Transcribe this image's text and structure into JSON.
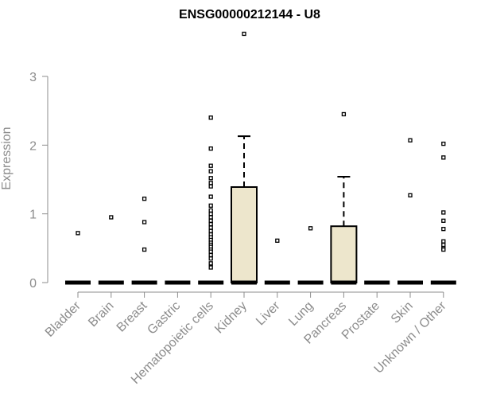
{
  "chart_data": {
    "type": "boxplot",
    "title": "ENSG00000212144 - U8",
    "xlabel": "",
    "ylabel": "Expression",
    "ylim": [
      0,
      3.6
    ],
    "yticks": [
      "0",
      "1",
      "2",
      "3"
    ],
    "box_fill": "#ede6cc",
    "categories": [
      "Bladder",
      "Brain",
      "Breast",
      "Gastric",
      "Hematopoietic cells",
      "Kidney",
      "Liver",
      "Lung",
      "Pancreas",
      "Prostate",
      "Skin",
      "Unknown / Other"
    ],
    "boxes": [
      {
        "category": "Bladder",
        "min": 0,
        "q1": 0,
        "median": 0,
        "q3": 0,
        "max": 0,
        "outliers": [
          0.72
        ]
      },
      {
        "category": "Brain",
        "min": 0,
        "q1": 0,
        "median": 0,
        "q3": 0,
        "max": 0,
        "outliers": [
          0.95
        ]
      },
      {
        "category": "Breast",
        "min": 0,
        "q1": 0,
        "median": 0,
        "q3": 0,
        "max": 0,
        "outliers": [
          1.22,
          0.88,
          0.48
        ]
      },
      {
        "category": "Gastric",
        "min": 0,
        "q1": 0,
        "median": 0,
        "q3": 0,
        "max": 0,
        "outliers": []
      },
      {
        "category": "Hematopoietic cells",
        "min": 0,
        "q1": 0,
        "median": 0,
        "q3": 0,
        "max": 0,
        "outliers": [
          2.4,
          1.95,
          1.7,
          1.62,
          1.52,
          1.45,
          1.4,
          1.25,
          1.12,
          1.05,
          1.0,
          0.95,
          0.9,
          0.85,
          0.8,
          0.75,
          0.7,
          0.66,
          0.62,
          0.58,
          0.55,
          0.52,
          0.48,
          0.45,
          0.4,
          0.35,
          0.28,
          0.22
        ]
      },
      {
        "category": "Kidney",
        "min": 0,
        "q1": 0,
        "median": 0,
        "q3": 1.39,
        "max": 2.13,
        "outliers": [
          3.62
        ]
      },
      {
        "category": "Liver",
        "min": 0,
        "q1": 0,
        "median": 0,
        "q3": 0,
        "max": 0,
        "outliers": [
          0.61
        ]
      },
      {
        "category": "Lung",
        "min": 0,
        "q1": 0,
        "median": 0,
        "q3": 0,
        "max": 0,
        "outliers": [
          0.79
        ]
      },
      {
        "category": "Pancreas",
        "min": 0,
        "q1": 0,
        "median": 0,
        "q3": 0.82,
        "max": 1.54,
        "outliers": [
          2.45
        ]
      },
      {
        "category": "Prostate",
        "min": 0,
        "q1": 0,
        "median": 0,
        "q3": 0,
        "max": 0,
        "outliers": []
      },
      {
        "category": "Skin",
        "min": 0,
        "q1": 0,
        "median": 0,
        "q3": 0,
        "max": 0,
        "outliers": [
          2.07,
          1.27
        ]
      },
      {
        "category": "Unknown / Other",
        "min": 0,
        "q1": 0,
        "median": 0,
        "q3": 0,
        "max": 0,
        "outliers": [
          2.02,
          1.82,
          1.02,
          0.9,
          0.78,
          0.6,
          0.55,
          0.5,
          0.48
        ]
      }
    ]
  }
}
